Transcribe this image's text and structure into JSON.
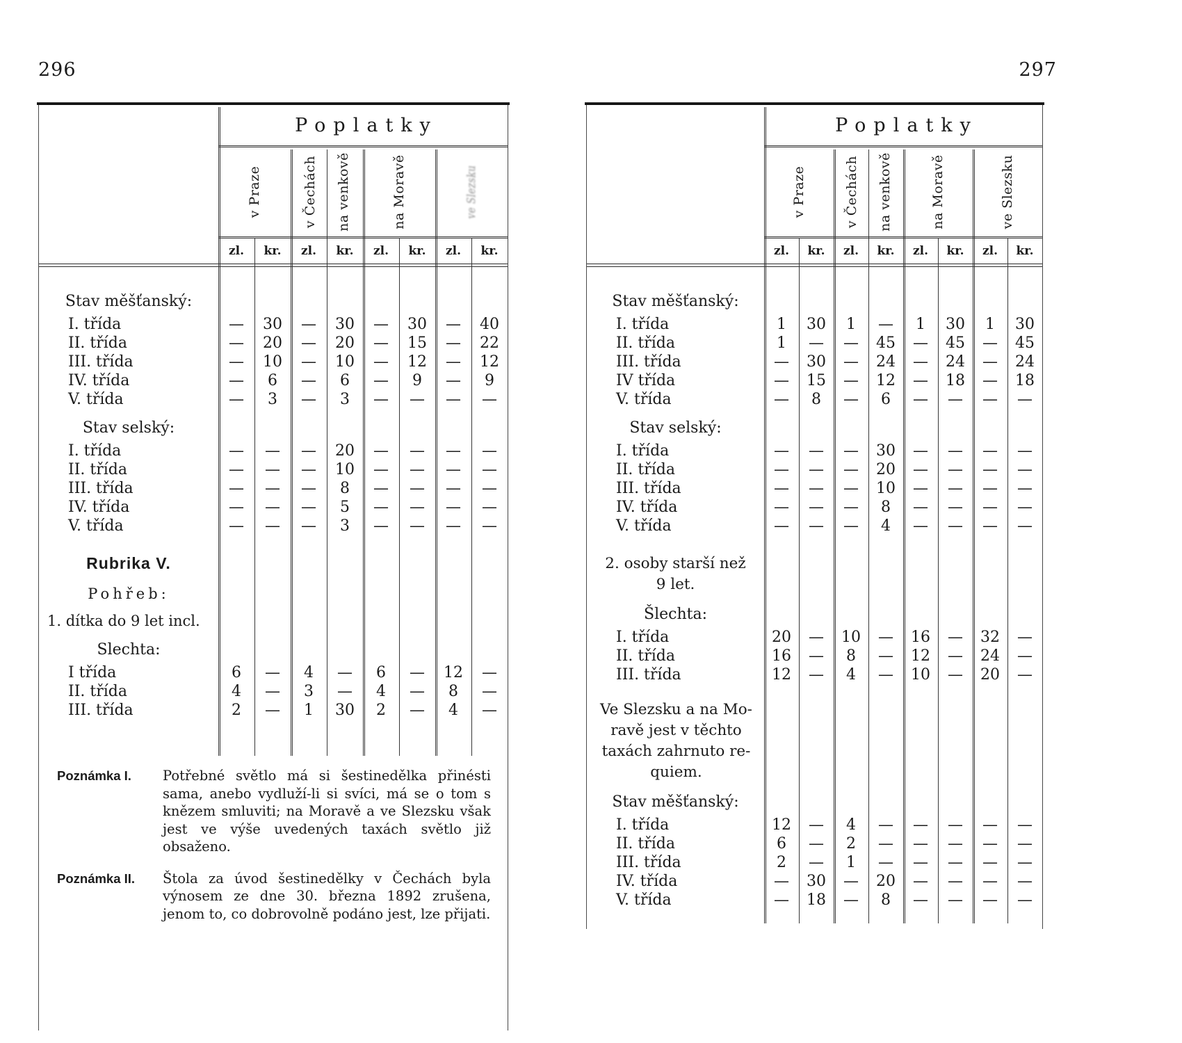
{
  "ink_color": "#1b1b1b",
  "rule_color": "#333333",
  "left_page": {
    "page_number": "296",
    "table": {
      "title": "Poplatky",
      "column_groups": [
        {
          "lines": [
            "v Praze"
          ]
        },
        {
          "lines": [
            "v Čechách",
            "na venkově"
          ],
          "split": "yes"
        },
        {
          "lines": [
            "na Moravě"
          ]
        },
        {
          "lines": [
            "ve Slezsku"
          ],
          "degraded": "yes"
        }
      ],
      "unit_labels": [
        "zl.",
        "kr.",
        "zl.",
        "kr.",
        "zl.",
        "kr.",
        "zl.",
        "kr."
      ],
      "rows": [
        {
          "type": "section",
          "label": "Stav měšťanský:"
        },
        {
          "type": "data",
          "label": "I. třída",
          "cells": [
            "—",
            "30",
            "—",
            "30",
            "—",
            "30",
            "—",
            "40"
          ]
        },
        {
          "type": "data",
          "label": "II. třída",
          "cells": [
            "—",
            "20",
            "—",
            "20",
            "—",
            "15",
            "—",
            "22"
          ]
        },
        {
          "type": "data",
          "label": "III. třída",
          "cells": [
            "—",
            "10",
            "—",
            "10",
            "—",
            "12",
            "—",
            "12"
          ]
        },
        {
          "type": "data",
          "label": "IV. třída",
          "cells": [
            "—",
            "6",
            "—",
            "6",
            "—",
            "9",
            "—",
            "9"
          ]
        },
        {
          "type": "data",
          "label": "V. třída",
          "cells": [
            "—",
            "3",
            "—",
            "3",
            "—",
            "—",
            "—",
            "—"
          ]
        },
        {
          "type": "section",
          "label": "Stav selský:"
        },
        {
          "type": "data",
          "label": "I. třída",
          "cells": [
            "—",
            "—",
            "—",
            "20",
            "—",
            "—",
            "—",
            "—"
          ]
        },
        {
          "type": "data",
          "label": "II. třída",
          "cells": [
            "—",
            "—",
            "—",
            "10",
            "—",
            "—",
            "—",
            "—"
          ]
        },
        {
          "type": "data",
          "label": "III. třída",
          "cells": [
            "—",
            "—",
            "—",
            "8",
            "—",
            "—",
            "—",
            "—"
          ]
        },
        {
          "type": "data",
          "label": "IV. třída",
          "cells": [
            "—",
            "—",
            "—",
            "5",
            "—",
            "—",
            "—",
            "—"
          ]
        },
        {
          "type": "data",
          "label": "V. třída",
          "cells": [
            "—",
            "—",
            "—",
            "3",
            "—",
            "—",
            "—",
            "—"
          ]
        },
        {
          "type": "rubrika",
          "label": "Rubrika V."
        },
        {
          "type": "spaced",
          "label": "Pohřeb:"
        },
        {
          "type": "plain",
          "label": "1. dítka do 9 let incl."
        },
        {
          "type": "section",
          "label": "Slechta:"
        },
        {
          "type": "data",
          "label": "I třída",
          "cells": [
            "6",
            "—",
            "4",
            "—",
            "6",
            "—",
            "12",
            "—"
          ]
        },
        {
          "type": "data",
          "label": "II. třída",
          "cells": [
            "4",
            "—",
            "3",
            "—",
            "4",
            "—",
            "8",
            "—"
          ]
        },
        {
          "type": "data",
          "label": "III. třída",
          "cells": [
            "2",
            "—",
            "1",
            "30",
            "2",
            "—",
            "4",
            "—"
          ]
        }
      ]
    },
    "notes": [
      {
        "label": "Poznámka I.",
        "text": "Potřebné světlo má si šestinedělka přinésti sama, anebo vydluží-li si svíci, má se o tom s knězem smluviti; na Moravě a ve Slezsku však jest ve výše uvedených taxách světlo již obsaženo."
      },
      {
        "label": "Poznámka II.",
        "text": "Štola za úvod šestinedělky v Čechách byla výnosem ze dne 30. března 1892 zrušena, jenom to, co dobrovolně podáno jest, lze přijati."
      }
    ]
  },
  "right_page": {
    "page_number": "297",
    "table": {
      "title": "Poplatky",
      "column_groups": [
        {
          "lines": [
            "v Praze"
          ]
        },
        {
          "lines": [
            "v Čechách",
            "na venkově"
          ],
          "split": "yes"
        },
        {
          "lines": [
            "na Moravě"
          ]
        },
        {
          "lines": [
            "ve Slezsku"
          ]
        }
      ],
      "unit_labels": [
        "zl.",
        "kr.",
        "zl.",
        "kr.",
        "zl.",
        "kr.",
        "zl.",
        "kr."
      ],
      "rows": [
        {
          "type": "section",
          "label": "Stav měšťanský:"
        },
        {
          "type": "data",
          "label": "I. třída",
          "cells": [
            "1",
            "30",
            "1",
            "—",
            "1",
            "30",
            "1",
            "30"
          ]
        },
        {
          "type": "data",
          "label": "II. třída",
          "cells": [
            "1",
            "—",
            "—",
            "45",
            "—",
            "45",
            "—",
            "45"
          ]
        },
        {
          "type": "data",
          "label": "III. třída",
          "cells": [
            "—",
            "30",
            "—",
            "24",
            "—",
            "24",
            "—",
            "24"
          ]
        },
        {
          "type": "data",
          "label": "IV třída",
          "cells": [
            "—",
            "15",
            "—",
            "12",
            "—",
            "18",
            "—",
            "18"
          ]
        },
        {
          "type": "data",
          "label": "V. třída",
          "cells": [
            "—",
            "8",
            "—",
            "6",
            "—",
            "—",
            "—",
            "—"
          ]
        },
        {
          "type": "section",
          "label": "Stav selský:"
        },
        {
          "type": "data",
          "label": "I. třída",
          "cells": [
            "—",
            "—",
            "—",
            "30",
            "—",
            "—",
            "—",
            "—"
          ]
        },
        {
          "type": "data",
          "label": "II. třída",
          "cells": [
            "—",
            "—",
            "—",
            "20",
            "—",
            "—",
            "—",
            "—"
          ]
        },
        {
          "type": "data",
          "label": "III. třída",
          "cells": [
            "—",
            "—",
            "—",
            "10",
            "—",
            "—",
            "—",
            "—"
          ]
        },
        {
          "type": "data",
          "label": "IV. třída",
          "cells": [
            "—",
            "—",
            "—",
            "8",
            "—",
            "—",
            "—",
            "—"
          ]
        },
        {
          "type": "data",
          "label": "V. třída",
          "cells": [
            "—",
            "—",
            "—",
            "4",
            "—",
            "—",
            "—",
            "—"
          ]
        },
        {
          "type": "center",
          "label": "2. osoby starší než\n9 let."
        },
        {
          "type": "section",
          "label": "Šlechta:"
        },
        {
          "type": "data",
          "label": "I. třída",
          "cells": [
            "20",
            "—",
            "10",
            "—",
            "16",
            "—",
            "32",
            "—"
          ]
        },
        {
          "type": "data",
          "label": "II. třída",
          "cells": [
            "16",
            "—",
            "8",
            "—",
            "12",
            "—",
            "24",
            "—"
          ]
        },
        {
          "type": "data",
          "label": "III. třída",
          "cells": [
            "12",
            "—",
            "4",
            "—",
            "10",
            "—",
            "20",
            "—"
          ]
        },
        {
          "type": "para",
          "label": "Ve Slezsku a na Mo-\nravě jest v těchto\ntaxách zahrnuto re-\nquiem."
        },
        {
          "type": "section",
          "label": "Stav měšťanský:"
        },
        {
          "type": "data",
          "label": "I. třída",
          "cells": [
            "12",
            "—",
            "4",
            "—",
            "—",
            "—",
            "—",
            "—"
          ]
        },
        {
          "type": "data",
          "label": "II. třída",
          "cells": [
            "6",
            "—",
            "2",
            "—",
            "—",
            "—",
            "—",
            "—"
          ]
        },
        {
          "type": "data",
          "label": "III. třída",
          "cells": [
            "2",
            "—",
            "1",
            "—",
            "—",
            "—",
            "—",
            "—"
          ]
        },
        {
          "type": "data",
          "label": "IV. třída",
          "cells": [
            "—",
            "30",
            "—",
            "20",
            "—",
            "—",
            "—",
            "—"
          ]
        },
        {
          "type": "data",
          "label": "V. třída",
          "cells": [
            "—",
            "18",
            "—",
            "8",
            "—",
            "—",
            "—",
            "—"
          ]
        }
      ]
    }
  }
}
